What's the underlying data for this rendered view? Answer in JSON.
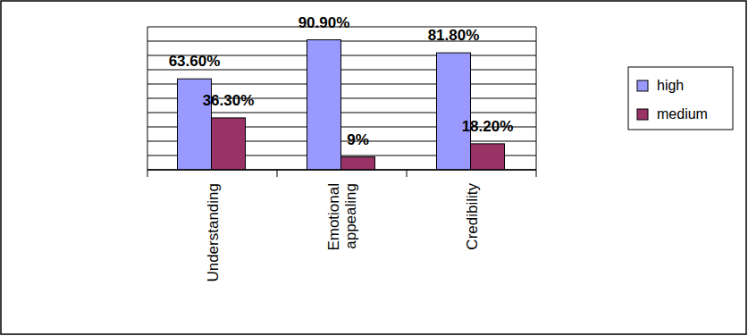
{
  "chart_data": {
    "type": "bar",
    "categories": [
      "Understanding",
      "Emotional appealing",
      "Credibility"
    ],
    "series": [
      {
        "name": "high",
        "color": "#9999ff",
        "values": [
          63.6,
          90.9,
          81.8
        ],
        "value_labels": [
          "63.60%",
          "90.90%",
          "81.80%"
        ]
      },
      {
        "name": "medium",
        "color": "#993366",
        "values": [
          36.3,
          9,
          18.2
        ],
        "value_labels": [
          "36.30%",
          "9%",
          "18.20%"
        ]
      }
    ],
    "ylim": [
      0,
      100
    ],
    "yticks": [
      0,
      10,
      20,
      30,
      40,
      50,
      60,
      70,
      80,
      90,
      100
    ],
    "grid": true,
    "legend": "right",
    "data_labels": true,
    "tick_labels": "x"
  }
}
